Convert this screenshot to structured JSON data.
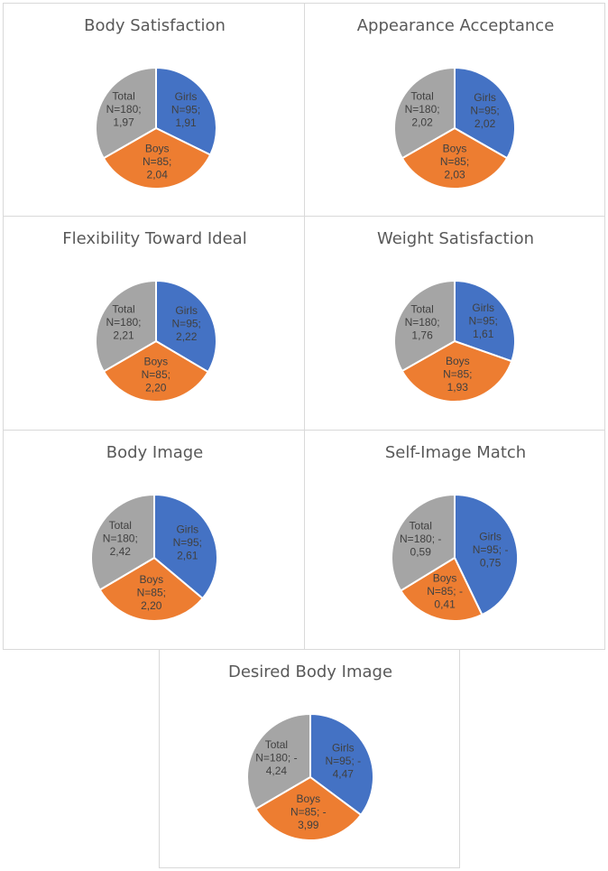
{
  "colors": {
    "girls": "#4472C4",
    "boys": "#ED7D31",
    "total": "#A5A5A5",
    "label": "#404040",
    "title": "#595959"
  },
  "chart_data": [
    {
      "type": "pie",
      "title": "Body Satisfaction",
      "categories": [
        "Girls",
        "Boys",
        "Total"
      ],
      "values": [
        1.91,
        2.04,
        1.97
      ],
      "labels": [
        [
          "Girls",
          "N=95;",
          "1,91"
        ],
        [
          "Boys",
          "N=85;",
          "2,04"
        ],
        [
          "Total",
          "N=180;",
          "1,97"
        ]
      ]
    },
    {
      "type": "pie",
      "title": "Appearance Acceptance",
      "categories": [
        "Girls",
        "Boys",
        "Total"
      ],
      "values": [
        2.02,
        2.03,
        2.02
      ],
      "labels": [
        [
          "Girls",
          "N=95;",
          "2,02"
        ],
        [
          "Boys",
          "N=85;",
          "2,03"
        ],
        [
          "Total",
          "N=180;",
          "2,02"
        ]
      ]
    },
    {
      "type": "pie",
      "title": "Flexibility Toward Ideal",
      "categories": [
        "Girls",
        "Boys",
        "Total"
      ],
      "values": [
        2.22,
        2.2,
        2.21
      ],
      "labels": [
        [
          "Girls",
          "N=95;",
          "2,22"
        ],
        [
          "Boys",
          "N=85;",
          "2,20"
        ],
        [
          "Total",
          "N=180;",
          "2,21"
        ]
      ]
    },
    {
      "type": "pie",
      "title": "Weight Satisfaction",
      "categories": [
        "Girls",
        "Boys",
        "Total"
      ],
      "values": [
        1.61,
        1.93,
        1.76
      ],
      "labels": [
        [
          "Girls",
          "N=95;",
          "1,61"
        ],
        [
          "Boys",
          "N=85;",
          "1,93"
        ],
        [
          "Total",
          "N=180;",
          "1,76"
        ]
      ]
    },
    {
      "type": "pie",
      "title": "Body Image",
      "categories": [
        "Girls",
        "Boys",
        "Total"
      ],
      "values": [
        2.61,
        2.2,
        2.42
      ],
      "labels": [
        [
          "Girls",
          "N=95;",
          "2,61"
        ],
        [
          "Boys",
          "N=85;",
          "2,20"
        ],
        [
          "Total",
          "N=180;",
          "2,42"
        ]
      ]
    },
    {
      "type": "pie",
      "title": "Self-Image Match",
      "categories": [
        "Girls",
        "Boys",
        "Total"
      ],
      "values": [
        -0.75,
        -0.41,
        -0.59
      ],
      "labels": [
        [
          "Girls",
          "N=95; -",
          "0,75"
        ],
        [
          "Boys",
          "N=85; -",
          "0,41"
        ],
        [
          "Total",
          "N=180; -",
          "0,59"
        ]
      ]
    },
    {
      "type": "pie",
      "title": "Desired Body Image",
      "categories": [
        "Girls",
        "Boys",
        "Total"
      ],
      "values": [
        -4.47,
        -3.99,
        -4.24
      ],
      "labels": [
        [
          "Girls",
          "N=95; -",
          "4,47"
        ],
        [
          "Boys",
          "N=85; -",
          "3,99"
        ],
        [
          "Total",
          "N=180; -",
          "4,24"
        ]
      ]
    }
  ]
}
